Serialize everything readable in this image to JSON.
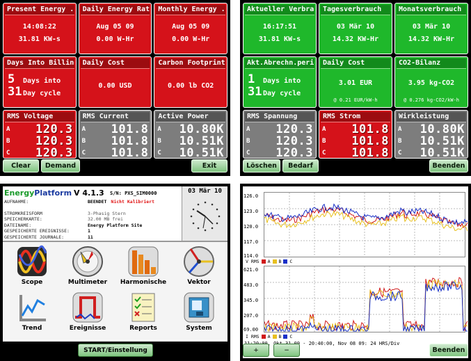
{
  "panel_en": {
    "tiles": [
      {
        "title": "Present Energy ...",
        "line1": "14:08:22",
        "line2": "31.81 KW-s"
      },
      {
        "title": "Daily Energy Rat...",
        "line1": "Aug 05 09",
        "line2": "0.00 W-Hr"
      },
      {
        "title": "Monthly Energy ...",
        "line1": "Aug 05 09",
        "line2": "0.00 W-Hr"
      },
      {
        "title": "Days Into Billing...",
        "days_num": "5",
        "days_text": "Days into",
        "cycle_num": "31",
        "cycle_text": "Day cycle"
      },
      {
        "title": "Daily Cost",
        "line1": "0.00 USD"
      },
      {
        "title": "Carbon Footprint",
        "line1": "0.00 lb CO2"
      },
      {
        "title": "RMS Voltage",
        "a": "120.3",
        "b": "120.3",
        "c": "120.3"
      },
      {
        "title": "RMS Current",
        "a": "101.8",
        "b": "101.8",
        "c": "101.8"
      },
      {
        "title": "Active Power",
        "a": "10.80K",
        "b": "10.51K",
        "c": "10.51K"
      }
    ],
    "buttons": {
      "clear": "Clear",
      "demand": "Demand",
      "exit": "Exit"
    }
  },
  "panel_de": {
    "tiles": [
      {
        "title": "Aktueller Verbra...",
        "line1": "16:17:51",
        "line2": "31.81 KW-s"
      },
      {
        "title": "Tagesverbrauch",
        "line1": "03 Mär 10",
        "line2": "14.32 KW-Hr"
      },
      {
        "title": "Monatsverbrauch",
        "line1": "03 Mär 10",
        "line2": "14.32 KW-Hr"
      },
      {
        "title": "Akt.Abrechn.perio...",
        "days_num": "1",
        "days_text": "Days into",
        "cycle_num": "31",
        "cycle_text": "Day cycle"
      },
      {
        "title": "Daily Cost",
        "line1": "3.01 EUR",
        "sub": "@ 0.21 EUR/kW-h"
      },
      {
        "title": "CO2-Bilanz",
        "line1": "3.95 kg-CO2",
        "sub": "@ 0.276 kg-CO2/kW-h"
      },
      {
        "title": "RMS Spannung",
        "a": "120.3",
        "b": "120.3",
        "c": "120.3"
      },
      {
        "title": "RMS Strom",
        "a": "101.8",
        "b": "101.8",
        "c": "101.8"
      },
      {
        "title": "Wirkleistung",
        "a": "10.80K",
        "b": "10.51K",
        "c": "10.51K"
      }
    ],
    "buttons": {
      "clear": "Löschen",
      "demand": "Bedarf",
      "exit": "Beenden"
    }
  },
  "phase_labels": {
    "a": "A",
    "b": "B",
    "c": "C"
  },
  "menu": {
    "brand1": "Energy",
    "brand2": "Platform",
    "version": "V 4.1.3",
    "serial": "S/N: PXS_SIM0000",
    "date": "03 Mär 10",
    "info": [
      {
        "key": "AUFNAHME:",
        "value": "BEENDET",
        "extra": "Nicht Kalibriert"
      },
      {
        "key": "STROMKREISFORM",
        "value": "3-Phasig Stern"
      },
      {
        "key": "SPEICHERKARTE:",
        "value": "32.00 MB frei"
      },
      {
        "key": "DATEINAME:",
        "value": "Energy Platform Site"
      },
      {
        "key": "GESPEICHERTE EREIGNISSE:",
        "value": "1"
      },
      {
        "key": "GESPEICHERTE JOURNALE:",
        "value": "11"
      }
    ],
    "icons": [
      {
        "label": "Scope"
      },
      {
        "label": "Multimeter"
      },
      {
        "label": "Harmonische"
      },
      {
        "label": "Vektor"
      },
      {
        "label": "Trend"
      },
      {
        "label": "Ereignisse"
      },
      {
        "label": "Reports"
      },
      {
        "label": "System"
      }
    ],
    "start_button": "START/Einstellung"
  },
  "trend": {
    "top_yticks": [
      "126.0",
      "123.0",
      "120.0",
      "117.0",
      "114.0"
    ],
    "bottom_yticks": [
      "621.0",
      "483.0",
      "345.0",
      "207.0",
      "69.00"
    ],
    "top_legend_label": "V RMS",
    "bottom_legend_label": "I RMS",
    "series_labels": [
      "A",
      "B",
      "C"
    ],
    "series_colors": [
      "#d01818",
      "#e8c020",
      "#1830c8"
    ],
    "status": "11:20:00, Okt 31 09 - 20:40:00, Nov 08 09:  24 HRS/Div",
    "zoom_in": "+",
    "zoom_out": "−",
    "exit": "Beenden"
  }
}
